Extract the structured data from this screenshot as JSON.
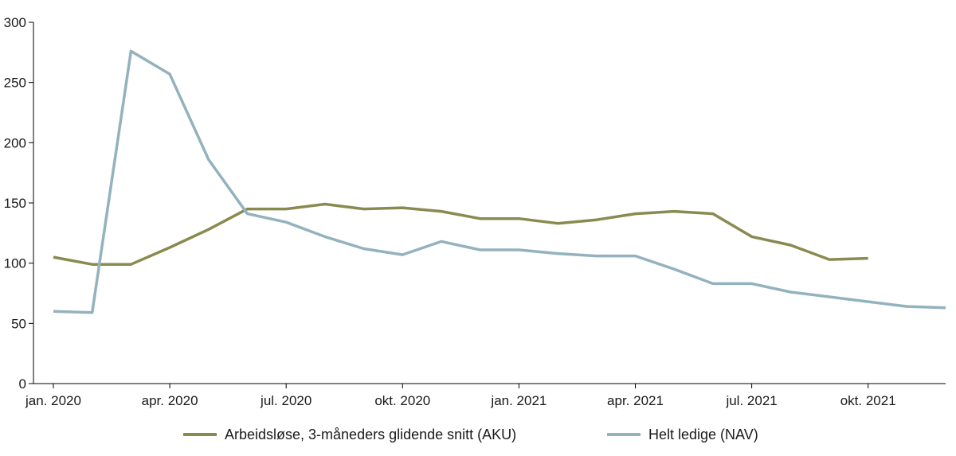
{
  "chart_data": {
    "type": "line",
    "title": "",
    "xlabel": "",
    "ylabel": "",
    "ylim": [
      0,
      300
    ],
    "yticks": [
      0,
      50,
      100,
      150,
      200,
      250,
      300
    ],
    "xlim": [
      0,
      23
    ],
    "xticks": [
      {
        "index": 0,
        "label": "jan. 2020"
      },
      {
        "index": 3,
        "label": "apr. 2020"
      },
      {
        "index": 6,
        "label": "jul. 2020"
      },
      {
        "index": 9,
        "label": "okt. 2020"
      },
      {
        "index": 12,
        "label": "jan. 2021"
      },
      {
        "index": 15,
        "label": "apr. 2021"
      },
      {
        "index": 18,
        "label": "jul. 2021"
      },
      {
        "index": 21,
        "label": "okt. 2021"
      }
    ],
    "x": [
      "2020-01",
      "2020-02",
      "2020-03",
      "2020-04",
      "2020-05",
      "2020-06",
      "2020-07",
      "2020-08",
      "2020-09",
      "2020-10",
      "2020-11",
      "2020-12",
      "2021-01",
      "2021-02",
      "2021-03",
      "2021-04",
      "2021-05",
      "2021-06",
      "2021-07",
      "2021-08",
      "2021-09",
      "2021-10",
      "2021-11",
      "2021-12"
    ],
    "grid": false,
    "legend_position": "bottom",
    "series": [
      {
        "name": "Arbeidsløse, 3-måneders glidende snitt (AKU)",
        "color": "#8a8a50",
        "values": [
          105,
          99,
          99,
          113,
          128,
          145,
          145,
          149,
          145,
          146,
          143,
          137,
          137,
          133,
          136,
          141,
          143,
          141,
          122,
          115,
          103,
          104,
          null,
          null
        ]
      },
      {
        "name": "Helt ledige (NAV)",
        "color": "#93b2be",
        "values": [
          60,
          59,
          276,
          257,
          186,
          141,
          134,
          122,
          112,
          107,
          118,
          111,
          111,
          108,
          106,
          106,
          95,
          83,
          83,
          76,
          72,
          68,
          64,
          63
        ]
      }
    ]
  }
}
